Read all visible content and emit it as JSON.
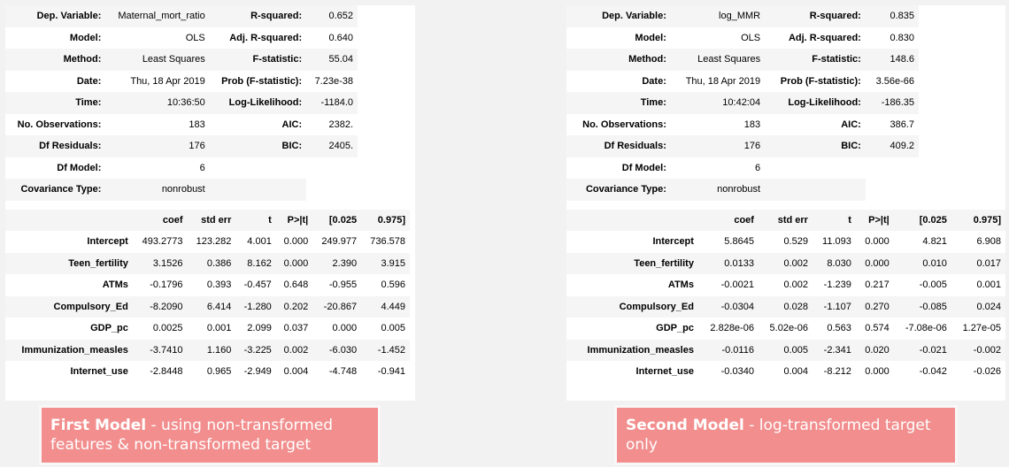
{
  "left": {
    "header": [
      [
        "Dep. Variable:",
        "Maternal_mort_ratio",
        "R-squared:",
        "0.652"
      ],
      [
        "Model:",
        "OLS",
        "Adj. R-squared:",
        "0.640"
      ],
      [
        "Method:",
        "Least Squares",
        "F-statistic:",
        "55.04"
      ],
      [
        "Date:",
        "Thu, 18 Apr 2019",
        "Prob (F-statistic):",
        "7.23e-38"
      ],
      [
        "Time:",
        "10:36:50",
        "Log-Likelihood:",
        "-1184.0"
      ],
      [
        "No. Observations:",
        "183",
        "AIC:",
        "2382."
      ],
      [
        "Df Residuals:",
        "176",
        "BIC:",
        "2405."
      ],
      [
        "Df Model:",
        "6",
        "",
        ""
      ],
      [
        "Covariance Type:",
        "nonrobust",
        "",
        ""
      ]
    ],
    "coef_header": [
      "",
      "coef",
      "std err",
      "t",
      "P>|t|",
      "[0.025",
      "0.975]"
    ],
    "coef_rows": [
      [
        "Intercept",
        "493.2773",
        "123.282",
        "4.001",
        "0.000",
        "249.977",
        "736.578"
      ],
      [
        "Teen_fertility",
        "3.1526",
        "0.386",
        "8.162",
        "0.000",
        "2.390",
        "3.915"
      ],
      [
        "ATMs",
        "-0.1796",
        "0.393",
        "-0.457",
        "0.648",
        "-0.955",
        "0.596"
      ],
      [
        "Compulsory_Ed",
        "-8.2090",
        "6.414",
        "-1.280",
        "0.202",
        "-20.867",
        "4.449"
      ],
      [
        "GDP_pc",
        "0.0025",
        "0.001",
        "2.099",
        "0.037",
        "0.000",
        "0.005"
      ],
      [
        "Immunization_measles",
        "-3.7410",
        "1.160",
        "-3.225",
        "0.002",
        "-6.030",
        "-1.452"
      ],
      [
        "Internet_use",
        "-2.8448",
        "0.965",
        "-2.949",
        "0.004",
        "-4.748",
        "-0.941"
      ]
    ],
    "caption_bold": "First Model",
    "caption_rest": " - using non-transformed features & non-transformed target"
  },
  "right": {
    "header": [
      [
        "Dep. Variable:",
        "log_MMR",
        "R-squared:",
        "0.835"
      ],
      [
        "Model:",
        "OLS",
        "Adj. R-squared:",
        "0.830"
      ],
      [
        "Method:",
        "Least Squares",
        "F-statistic:",
        "148.6"
      ],
      [
        "Date:",
        "Thu, 18 Apr 2019",
        "Prob (F-statistic):",
        "3.56e-66"
      ],
      [
        "Time:",
        "10:42:04",
        "Log-Likelihood:",
        "-186.35"
      ],
      [
        "No. Observations:",
        "183",
        "AIC:",
        "386.7"
      ],
      [
        "Df Residuals:",
        "176",
        "BIC:",
        "409.2"
      ],
      [
        "Df Model:",
        "6",
        "",
        ""
      ],
      [
        "Covariance Type:",
        "nonrobust",
        "",
        ""
      ]
    ],
    "coef_header": [
      "",
      "coef",
      "std err",
      "t",
      "P>|t|",
      "[0.025",
      "0.975]"
    ],
    "coef_rows": [
      [
        "Intercept",
        "5.8645",
        "0.529",
        "11.093",
        "0.000",
        "4.821",
        "6.908"
      ],
      [
        "Teen_fertility",
        "0.0133",
        "0.002",
        "8.030",
        "0.000",
        "0.010",
        "0.017"
      ],
      [
        "ATMs",
        "-0.0021",
        "0.002",
        "-1.239",
        "0.217",
        "-0.005",
        "0.001"
      ],
      [
        "Compulsory_Ed",
        "-0.0304",
        "0.028",
        "-1.107",
        "0.270",
        "-0.085",
        "0.024"
      ],
      [
        "GDP_pc",
        "2.828e-06",
        "5.02e-06",
        "0.563",
        "0.574",
        "-7.08e-06",
        "1.27e-05"
      ],
      [
        "Immunization_measles",
        "-0.0116",
        "0.005",
        "-2.341",
        "0.020",
        "-0.021",
        "-0.002"
      ],
      [
        "Internet_use",
        "-0.0340",
        "0.004",
        "-8.212",
        "0.000",
        "-0.042",
        "-0.026"
      ]
    ],
    "caption_bold": "Second Model",
    "caption_rest": " - log-transformed target only"
  }
}
